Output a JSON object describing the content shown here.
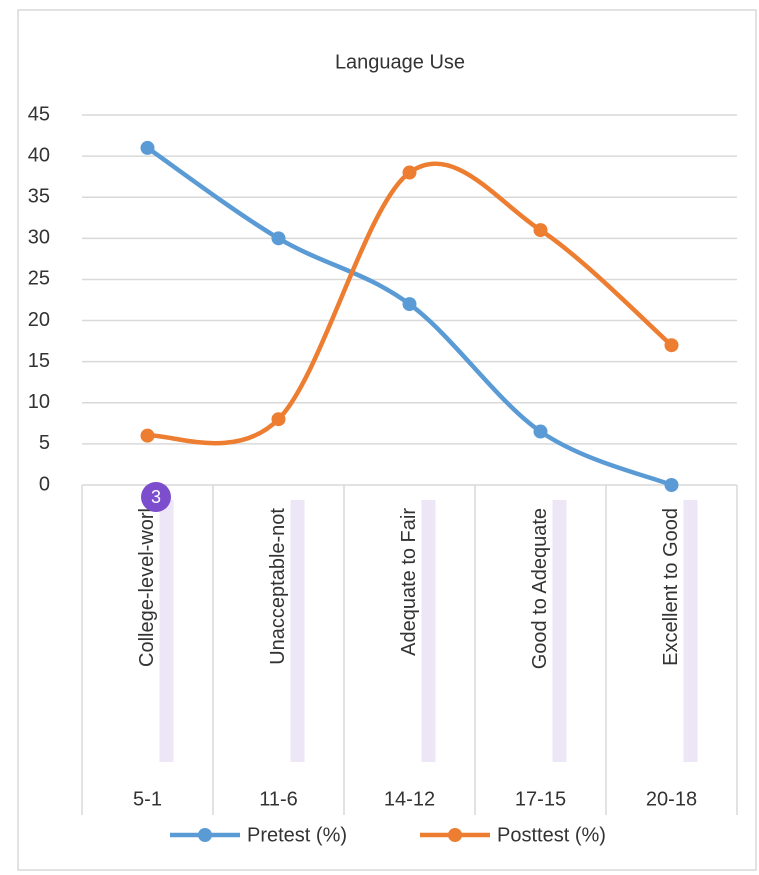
{
  "chart_data": {
    "type": "line",
    "title": "Language Use",
    "categories": [
      "5-1",
      "11-6",
      "14-12",
      "17-15",
      "20-18"
    ],
    "sublabels": [
      "College-level-worl",
      "Unacceptable-not",
      "Adequate to Fair",
      "Good to Adequate",
      "Excellent to Good"
    ],
    "series": [
      {
        "name": "Pretest (%)",
        "color": "#5b9bd5",
        "values": [
          41,
          30,
          22,
          6.5,
          0
        ]
      },
      {
        "name": "Posttest (%)",
        "color": "#ed7d31",
        "values": [
          6,
          8,
          38,
          31,
          17
        ]
      }
    ],
    "ylim": [
      0,
      45
    ],
    "yticks": [
      0,
      5,
      10,
      15,
      20,
      25,
      30,
      35,
      40,
      45
    ],
    "grid": true,
    "smooth": true,
    "legend": "bottom",
    "badge": "3"
  }
}
